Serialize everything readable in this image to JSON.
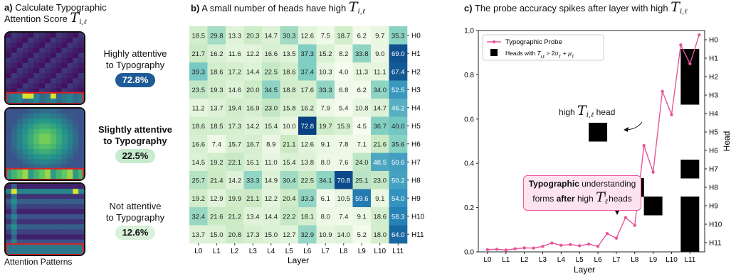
{
  "panel_a": {
    "title_prefix": "a)",
    "title_line1": "Calculate Typographic",
    "title_line2": "Attention Score",
    "title_math": "T",
    "title_math_sub": "i,ℓ",
    "examples": [
      {
        "line1": "Highly attentive",
        "line2": "to Typography",
        "score": "72.8%",
        "bold": false
      },
      {
        "line1": "Slightly attentive",
        "line2": "to Typography",
        "score": "22.5%",
        "bold": true
      },
      {
        "line1": "Not attentive",
        "line2": "to Typography",
        "score": "12.6%",
        "bold": false
      }
    ],
    "caption": "Attention Patterns",
    "colors": {
      "highly": "#1e5a96",
      "slightly": "#c6ebcd",
      "not": "#d9f0da"
    }
  },
  "chart_data": [
    {
      "type": "heatmap",
      "title_prefix": "b)",
      "title": "A small number of heads have high",
      "title_math": "T",
      "title_math_sub": "i,ℓ",
      "xlabel": "Layer",
      "ylabel": "",
      "x_categories": [
        "L0",
        "L1",
        "L2",
        "L3",
        "L4",
        "L5",
        "L6",
        "L7",
        "L8",
        "L9",
        "L10",
        "L11"
      ],
      "y_categories": [
        "H0",
        "H1",
        "H2",
        "H3",
        "H4",
        "H5",
        "H6",
        "H7",
        "H8",
        "H9",
        "H10",
        "H11"
      ],
      "values": [
        [
          18.5,
          29.8,
          13.3,
          20.3,
          14.7,
          30.3,
          12.6,
          7.5,
          18.7,
          6.2,
          9.7,
          35.3
        ],
        [
          21.7,
          16.2,
          11.6,
          12.2,
          16.6,
          13.5,
          37.3,
          15.2,
          8.2,
          33.8,
          9.0,
          69.0
        ],
        [
          39.3,
          18.6,
          17.2,
          14.4,
          22.5,
          18.6,
          37.4,
          10.3,
          4.0,
          11.3,
          11.1,
          67.4
        ],
        [
          23.5,
          19.3,
          14.6,
          20.0,
          34.5,
          18.8,
          17.6,
          33.3,
          6.8,
          6.2,
          34.0,
          52.5
        ],
        [
          11.2,
          13.7,
          19.4,
          16.9,
          23.0,
          15.8,
          16.2,
          7.9,
          5.4,
          10.8,
          14.7,
          46.2
        ],
        [
          18.6,
          18.5,
          17.3,
          14.2,
          15.4,
          10.0,
          72.8,
          19.7,
          15.9,
          4.5,
          36.7,
          40.0
        ],
        [
          16.6,
          7.4,
          15.7,
          16.7,
          8.9,
          21.1,
          12.6,
          9.1,
          7.8,
          7.1,
          21.6,
          35.6
        ],
        [
          14.5,
          19.2,
          22.1,
          16.1,
          11.0,
          15.4,
          13.8,
          8.0,
          7.6,
          24.0,
          48.5,
          50.6
        ],
        [
          25.7,
          21.4,
          14.2,
          33.3,
          14.9,
          30.4,
          22.5,
          34.1,
          70.8,
          25.1,
          23.0,
          50.2
        ],
        [
          19.2,
          12.9,
          19.9,
          21.1,
          12.2,
          20.4,
          33.3,
          6.1,
          10.5,
          59.6,
          9.1,
          54.0
        ],
        [
          32.4,
          21.6,
          21.2,
          13.4,
          14.4,
          22.2,
          18.1,
          8.0,
          7.4,
          9.1,
          18.6,
          58.3
        ],
        [
          13.7,
          15.0,
          20.8,
          17.3,
          15.0,
          12.7,
          32.9,
          10.9,
          14.0,
          5.2,
          18.0,
          64.0
        ]
      ],
      "color_range": [
        4,
        73
      ]
    },
    {
      "type": "line",
      "title_prefix": "c)",
      "title": "The probe accuracy spikes after layer with high",
      "title_math": "T",
      "title_math_sub": "i,ℓ",
      "xlabel": "Layer",
      "ylabel": "",
      "y2label": "Head",
      "x_tick_labels": [
        "L0",
        "L1",
        "L2",
        "L3",
        "L4",
        "L5",
        "L6",
        "L7",
        "L8",
        "L9",
        "L10",
        "L11"
      ],
      "y_ticks": [
        0.0,
        0.2,
        0.4,
        0.6,
        0.8,
        1.0
      ],
      "ylim": [
        0.0,
        1.0
      ],
      "y2_tick_labels": [
        "H0",
        "H1",
        "H2",
        "H3",
        "H4",
        "H5",
        "H6",
        "H7",
        "H8",
        "H9",
        "H10",
        "H11"
      ],
      "series": [
        {
          "name": "Typographic Probe",
          "color": "#e8559a",
          "x": [
            0,
            0.5,
            1,
            1.5,
            2,
            2.5,
            3,
            3.5,
            4,
            4.5,
            5,
            5.5,
            6,
            6.5,
            7,
            7.5,
            8,
            8.5,
            9,
            9.5,
            10,
            10.5,
            11,
            11.5
          ],
          "y": [
            0.01,
            0.012,
            0.008,
            0.014,
            0.018,
            0.017,
            0.025,
            0.04,
            0.03,
            0.033,
            0.028,
            0.035,
            0.025,
            0.083,
            0.062,
            0.155,
            0.12,
            0.48,
            0.36,
            0.725,
            0.62,
            0.935,
            0.85,
            0.98
          ]
        }
      ],
      "heads_legend_math": "Heads with T_{i,ℓ} > 2σ_T + μ_T",
      "heads_cells": [
        {
          "layer": 6,
          "head": 5
        },
        {
          "layer": 8,
          "head": 8
        },
        {
          "layer": 9,
          "head": 9
        },
        {
          "layer": 11,
          "head": 1
        },
        {
          "layer": 11,
          "head": 2
        },
        {
          "layer": 11,
          "head": 3
        },
        {
          "layer": 11,
          "head": 7
        },
        {
          "layer": 11,
          "head": 9
        },
        {
          "layer": 11,
          "head": 10
        },
        {
          "layer": 11,
          "head": 11
        }
      ],
      "annotations": {
        "high_head_prefix": "high",
        "high_head_suffix": "head",
        "callout_bold1": "Typographic",
        "callout_rest1": "understanding",
        "callout_line2a": "forms",
        "callout_bold2": "after",
        "callout_line2b": "high",
        "callout_line2c": "heads"
      },
      "legend_placement": "top-left",
      "grid": false
    }
  ]
}
